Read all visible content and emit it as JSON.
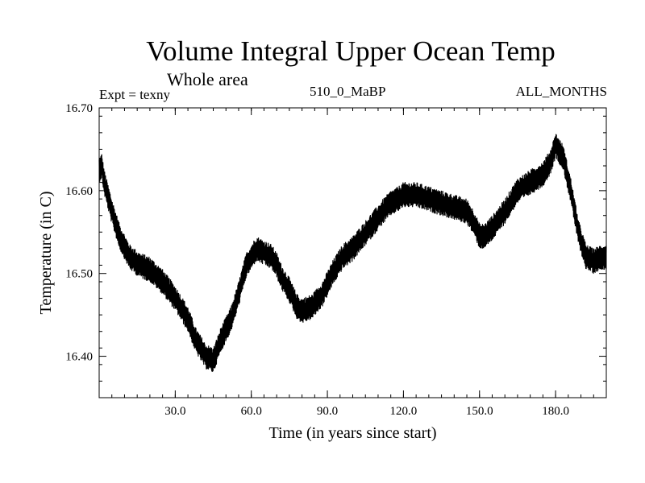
{
  "header": {
    "title": "Volume Integral Upper Ocean Temp",
    "subtitle": "Whole area",
    "left_label": "Expt = texny",
    "center_label": "510_0_MaBP",
    "right_label": "ALL_MONTHS"
  },
  "chart_data": {
    "type": "line",
    "title": "Volume Integral Upper Ocean Temp",
    "xlabel": "Time (in years since start)",
    "ylabel": "Temperature (in C)",
    "xlim": [
      0,
      200
    ],
    "ylim": [
      16.35,
      16.7
    ],
    "x_ticks": [
      30,
      60,
      90,
      120,
      150,
      180
    ],
    "x_tick_labels": [
      "30.0",
      "60.0",
      "90.0",
      "120.0",
      "150.0",
      "180.0"
    ],
    "y_ticks": [
      16.4,
      16.5,
      16.6,
      16.7
    ],
    "y_tick_labels": [
      "16.40",
      "16.50",
      "16.60",
      "16.70"
    ],
    "grid": false,
    "line_color": "#000000",
    "noise_amplitude": 0.015,
    "series": [
      {
        "name": "Volume Integral Upper Ocean Temp",
        "x": [
          0,
          1,
          2,
          5,
          8,
          12,
          16,
          20,
          25,
          30,
          35,
          38,
          42,
          45,
          48,
          52,
          55,
          58,
          60,
          62,
          65,
          68,
          70,
          72,
          75,
          78,
          80,
          84,
          88,
          92,
          96,
          100,
          104,
          108,
          112,
          115,
          118,
          120,
          125,
          130,
          135,
          140,
          145,
          148,
          150,
          152,
          155,
          160,
          165,
          170,
          175,
          178,
          180,
          183,
          186,
          189,
          192,
          195,
          198,
          200
        ],
        "y": [
          16.625,
          16.63,
          16.61,
          16.575,
          16.545,
          16.52,
          16.51,
          16.505,
          16.49,
          16.47,
          16.445,
          16.42,
          16.4,
          16.395,
          16.42,
          16.445,
          16.475,
          16.51,
          16.52,
          16.53,
          16.525,
          16.52,
          16.51,
          16.495,
          16.48,
          16.46,
          16.455,
          16.46,
          16.475,
          16.5,
          16.52,
          16.53,
          16.545,
          16.56,
          16.575,
          16.585,
          16.59,
          16.595,
          16.595,
          16.59,
          16.585,
          16.58,
          16.575,
          16.56,
          16.545,
          16.545,
          16.555,
          16.575,
          16.6,
          16.61,
          16.62,
          16.635,
          16.655,
          16.64,
          16.6,
          16.55,
          16.52,
          16.515,
          16.52,
          16.52
        ]
      }
    ]
  }
}
